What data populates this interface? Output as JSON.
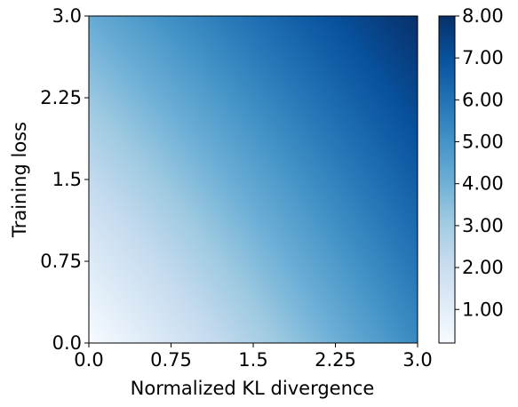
{
  "chart_data": {
    "type": "heatmap",
    "title": "",
    "xlabel": "Normalized KL divergence",
    "ylabel": "Training loss",
    "xlim": [
      0.0,
      3.0
    ],
    "ylim": [
      0.0,
      3.0
    ],
    "xticks": [
      0.0,
      0.75,
      1.5,
      2.25,
      3.0
    ],
    "xtick_labels": [
      "0.0",
      "0.75",
      "1.5",
      "2.25",
      "3.0"
    ],
    "yticks": [
      0.0,
      0.75,
      1.5,
      2.25,
      3.0
    ],
    "ytick_labels": [
      "0.0",
      "0.75",
      "1.5",
      "2.25",
      "3.0"
    ],
    "colormap": "Blues",
    "colorbar": {
      "range": [
        0.2,
        8.0
      ],
      "ticks": [
        1.0,
        2.0,
        3.0,
        4.0,
        5.0,
        6.0,
        7.0,
        8.0
      ],
      "tick_labels": [
        "1.00",
        "2.00",
        "3.00",
        "4.00",
        "5.00",
        "6.00",
        "7.00",
        "8.00"
      ]
    },
    "corner_values": [
      {
        "x": 0.0,
        "y": 0.0,
        "value": 0.2
      },
      {
        "x": 3.0,
        "y": 0.0,
        "value": 5.3
      },
      {
        "x": 0.0,
        "y": 3.0,
        "value": 4.2
      },
      {
        "x": 3.0,
        "y": 3.0,
        "value": 8.0
      }
    ],
    "grid": false
  }
}
